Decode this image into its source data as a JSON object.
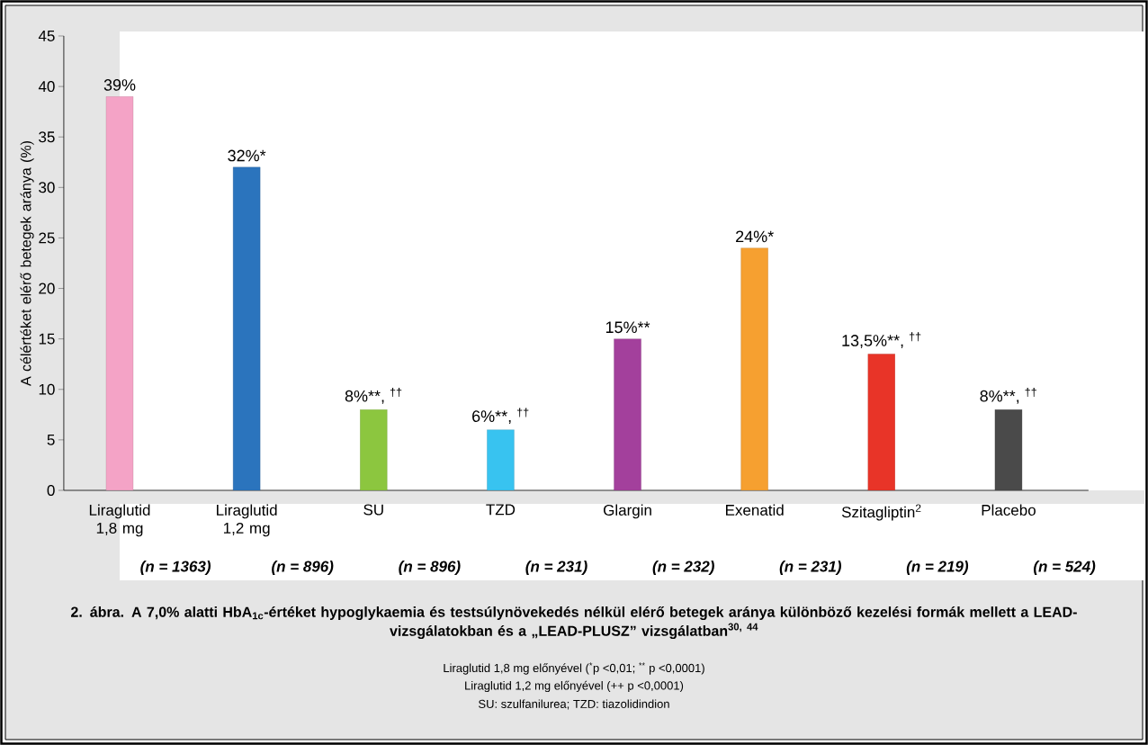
{
  "chart_data": {
    "type": "bar",
    "title": "2. ábra. A 7,0% alatti HbA$_{1c}$-értéket hypoglykaemia és testsúlynövekedés nélkül elérő betegek aránya különböző kezelési formák mellett a LEAD-vizsgálatokban és a „LEAD-PLUSZ” vizsgálatban$^{30, 44}$",
    "ylabel": "A célértéket elérő betegek aránya (%)",
    "categories": [
      "Liraglutid 1,8 mg",
      "Liraglutid 1,2 mg",
      "SU",
      "TZD",
      "Glargin",
      "Exenatid",
      "Szitagliptin$^{2}$",
      "Placebo"
    ],
    "values": [
      39,
      32,
      8,
      6,
      15,
      24,
      13.5,
      8
    ],
    "value_labels": [
      "39%",
      "32%*",
      "8%**, $^{††}$",
      "6%**, $^{††}$",
      "15%**",
      "24%*",
      "13,5%**, $^{††}$",
      "8%**, $^{††}$"
    ],
    "colors": [
      "#f4a3c6",
      "#2b74bd",
      "#8cc63f",
      "#38c3f0",
      "#a3409c",
      "#f6a030",
      "#e83428",
      "#4a4a4a"
    ],
    "ylim": [
      0,
      45
    ],
    "yticks": [
      0,
      5,
      10,
      15,
      20,
      25,
      30,
      35,
      40,
      45
    ],
    "grid": false,
    "annotations": [
      "(n = 1363)",
      "(n = 896)",
      "(n = 896)",
      "(n = 231)",
      "(n = 232)",
      "(n = 231)",
      "(n = 219)",
      "(n = 524)",
      "Liraglutid 1,8 mg előnyével ($^{*}$p <0,01; $^{**}$ p <0,0001)",
      "Liraglutid 1,2 mg előnyével (++ p <0,0001)",
      "SU: szulfanilurea; TZD: tiazolidindion"
    ]
  }
}
